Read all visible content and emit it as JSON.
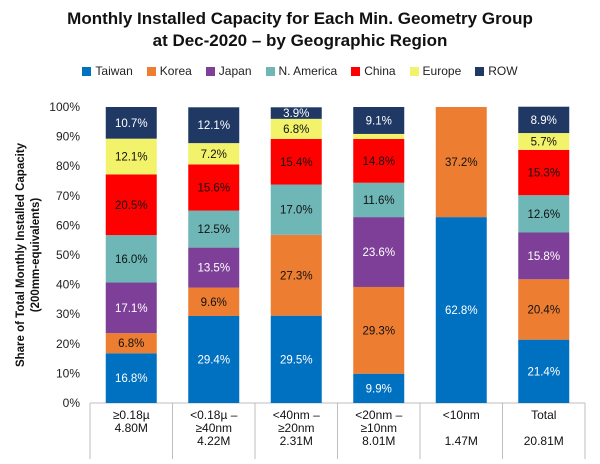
{
  "chart_data": {
    "type": "bar",
    "stacked": true,
    "title_line1": "Monthly Installed Capacity for Each Min. Geometry Group",
    "title_line2": "at Dec-2020 – by Geographic Region",
    "ylabel_line1": "Share of Total Monthly Installed Capacity",
    "ylabel_line2": "(200mm-equivalents)",
    "ylim": [
      0,
      100
    ],
    "yticks": [
      "0%",
      "10%",
      "20%",
      "30%",
      "40%",
      "50%",
      "60%",
      "70%",
      "80%",
      "90%",
      "100%"
    ],
    "legend_position": "top",
    "categories": [
      {
        "line1": "≥0.18µ",
        "line2": "",
        "total": "4.80M"
      },
      {
        "line1": "<0.18µ –",
        "line2": "≥40nm",
        "total": "4.22M"
      },
      {
        "line1": "<40nm –",
        "line2": "≥20nm",
        "total": "2.31M"
      },
      {
        "line1": "<20nm –",
        "line2": "≥10nm",
        "total": "8.01M"
      },
      {
        "line1": "<10nm",
        "line2": "",
        "total": "1.47M"
      },
      {
        "line1": "Total",
        "line2": "",
        "total": "20.81M"
      }
    ],
    "series": [
      {
        "name": "Taiwan",
        "color": "#0070C0",
        "values": [
          16.8,
          29.4,
          29.5,
          9.9,
          62.8,
          21.4
        ],
        "labels": [
          "16.8%",
          "29.4%",
          "29.5%",
          "9.9%",
          "62.8%",
          "21.4%"
        ]
      },
      {
        "name": "Korea",
        "color": "#ED7D31",
        "values": [
          6.8,
          9.6,
          27.3,
          29.3,
          37.2,
          20.4
        ],
        "labels": [
          "6.8%",
          "9.6%",
          "27.3%",
          "29.3%",
          "37.2%",
          "20.4%"
        ]
      },
      {
        "name": "Japan",
        "color": "#7E3F98",
        "values": [
          17.1,
          13.5,
          0,
          23.6,
          0,
          15.8
        ],
        "labels": [
          "17.1%",
          "13.5%",
          "",
          "23.6%",
          "",
          "15.8%"
        ]
      },
      {
        "name": "N. America",
        "color": "#6FB7B7",
        "values": [
          16.0,
          12.5,
          17.0,
          11.6,
          0,
          12.6
        ],
        "labels": [
          "16.0%",
          "12.5%",
          "17.0%",
          "11.6%",
          "",
          "12.6%"
        ]
      },
      {
        "name": "China",
        "color": "#FF0000",
        "values": [
          20.5,
          15.6,
          15.4,
          14.8,
          0,
          15.3
        ],
        "labels": [
          "20.5%",
          "15.6%",
          "15.4%",
          "14.8%",
          "",
          "15.3%"
        ]
      },
      {
        "name": "Europe",
        "color": "#F2F26B",
        "values": [
          12.1,
          7.2,
          6.8,
          1.7,
          0,
          5.7
        ],
        "labels": [
          "12.1%",
          "7.2%",
          "6.8%",
          "",
          "",
          "5.7%"
        ]
      },
      {
        "name": "ROW",
        "color": "#1F3864",
        "values": [
          10.7,
          12.1,
          3.9,
          9.1,
          0,
          8.9
        ],
        "labels": [
          "10.7%",
          "12.1%",
          "3.9%",
          "9.1%",
          "",
          "8.9%"
        ]
      }
    ]
  }
}
